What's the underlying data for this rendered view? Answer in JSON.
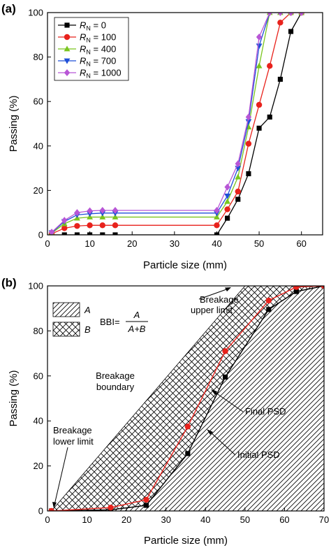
{
  "colors": {
    "RN0": "#000000",
    "RN100": "#e8221c",
    "RN400": "#7ac51e",
    "RN700": "#1f4fd8",
    "RN1000": "#b856d6",
    "final": "#e8221c",
    "initial": "#000000"
  },
  "chart_data": [
    {
      "type": "line",
      "panel_label": "(a)",
      "xlabel": "Particle size (mm)",
      "ylabel": "Passing (%)",
      "xlim": [
        0,
        65
      ],
      "ylim": [
        0,
        100
      ],
      "xticks": [
        0,
        10,
        20,
        30,
        40,
        50,
        60
      ],
      "yticks": [
        0,
        20,
        40,
        60,
        80,
        100
      ],
      "legend_position": "top-left",
      "series": [
        {
          "name": "R_N = 0",
          "sub": "N",
          "pre": "R",
          "post": " = 0",
          "marker": "square",
          "color": "#000000",
          "points": [
            [
              1,
              0
            ],
            [
              4,
              0
            ],
            [
              7,
              0
            ],
            [
              10,
              0
            ],
            [
              13,
              0
            ],
            [
              16,
              0
            ],
            [
              40,
              0
            ],
            [
              42.5,
              7.5
            ],
            [
              45,
              16
            ],
            [
              47.5,
              27.5
            ],
            [
              50,
              48
            ],
            [
              52.5,
              53
            ],
            [
              55,
              70
            ],
            [
              57.5,
              91.5
            ],
            [
              60,
              100
            ]
          ]
        },
        {
          "name": "R_N = 100",
          "sub": "N",
          "pre": "R",
          "post": " = 100",
          "marker": "circle",
          "color": "#e8221c",
          "points": [
            [
              1,
              0.5
            ],
            [
              4,
              3
            ],
            [
              7,
              4
            ],
            [
              10,
              4.3
            ],
            [
              13,
              4.3
            ],
            [
              16,
              4.3
            ],
            [
              40,
              4.3
            ],
            [
              42.5,
              11.5
            ],
            [
              45,
              19.5
            ],
            [
              47.5,
              41
            ],
            [
              50,
              58.5
            ],
            [
              52.5,
              76
            ],
            [
              55,
              95.5
            ],
            [
              57.5,
              100
            ],
            [
              60,
              100
            ]
          ]
        },
        {
          "name": "R_N = 400",
          "sub": "N",
          "pre": "R",
          "post": " = 400",
          "marker": "triangle-up",
          "color": "#7ac51e",
          "points": [
            [
              1,
              0.8
            ],
            [
              4,
              5
            ],
            [
              7,
              7.5
            ],
            [
              10,
              8
            ],
            [
              13,
              8
            ],
            [
              16,
              8
            ],
            [
              40,
              8
            ],
            [
              42.5,
              15
            ],
            [
              45,
              26
            ],
            [
              47.5,
              48.5
            ],
            [
              50,
              76
            ],
            [
              52.5,
              100
            ],
            [
              55,
              100
            ],
            [
              57.5,
              100
            ],
            [
              60,
              100
            ]
          ]
        },
        {
          "name": "R_N = 700",
          "sub": "N",
          "pre": "R",
          "post": " = 700",
          "marker": "triangle-down",
          "color": "#1f4fd8",
          "points": [
            [
              1,
              1
            ],
            [
              4,
              6
            ],
            [
              7,
              9
            ],
            [
              10,
              9.5
            ],
            [
              13,
              9.8
            ],
            [
              16,
              9.8
            ],
            [
              40,
              9.8
            ],
            [
              42.5,
              17.5
            ],
            [
              45,
              30
            ],
            [
              47.5,
              51
            ],
            [
              50,
              85
            ],
            [
              52.5,
              100
            ],
            [
              55,
              100
            ],
            [
              57.5,
              100
            ],
            [
              60,
              100
            ]
          ]
        },
        {
          "name": "R_N = 1000",
          "sub": "N",
          "pre": "R",
          "post": " = 1000",
          "marker": "diamond",
          "color": "#b856d6",
          "points": [
            [
              1,
              1.2
            ],
            [
              4,
              6.5
            ],
            [
              7,
              10
            ],
            [
              10,
              10.8
            ],
            [
              13,
              11
            ],
            [
              16,
              11
            ],
            [
              40,
              11
            ],
            [
              42.5,
              21.5
            ],
            [
              45,
              32
            ],
            [
              47.5,
              53
            ],
            [
              50,
              89
            ],
            [
              52.5,
              100
            ],
            [
              55,
              100
            ],
            [
              57.5,
              100
            ],
            [
              60,
              100
            ]
          ]
        }
      ]
    },
    {
      "type": "line",
      "panel_label": "(b)",
      "xlabel": "Particle size (mm)",
      "ylabel": "Passing (%)",
      "xlim": [
        0,
        70
      ],
      "ylim": [
        0,
        100
      ],
      "xticks": [
        0,
        10,
        20,
        30,
        40,
        50,
        60,
        70
      ],
      "yticks": [
        0,
        20,
        40,
        60,
        80,
        100
      ],
      "upper_limit": [
        [
          1,
          0
        ],
        [
          50,
          100
        ],
        [
          70,
          100
        ]
      ],
      "lower_limit": [
        [
          1,
          0
        ],
        [
          70,
          0
        ],
        [
          70,
          100
        ]
      ],
      "series": [
        {
          "key": "initial",
          "marker": "square",
          "color": "#000000",
          "points": [
            [
              1,
              0
            ],
            [
              16,
              0.5
            ],
            [
              25,
              2.5
            ],
            [
              35.5,
              25.5
            ],
            [
              45,
              59.5
            ],
            [
              56,
              89.5
            ],
            [
              63,
              97.5
            ],
            [
              70,
              100
            ]
          ]
        },
        {
          "key": "final",
          "marker": "circle",
          "color": "#e8221c",
          "points": [
            [
              1,
              0
            ],
            [
              16,
              1.5
            ],
            [
              25,
              5
            ],
            [
              35.5,
              37.5
            ],
            [
              45,
              71
            ],
            [
              56,
              93.5
            ],
            [
              63,
              99.5
            ],
            [
              70,
              100
            ]
          ]
        }
      ],
      "legend": {
        "A": "A",
        "B": "B",
        "formula_lhs": "BBI=",
        "formula_num": "A",
        "formula_den": "A+B"
      },
      "annotations": {
        "upper_1": "Breakage",
        "upper_2": "upper limit",
        "boundary_1": "Breakage",
        "boundary_2": "boundary",
        "lower_1": "Breakage",
        "lower_2": "lower limit",
        "final": "Final PSD",
        "initial": "Initial PSD"
      }
    }
  ]
}
